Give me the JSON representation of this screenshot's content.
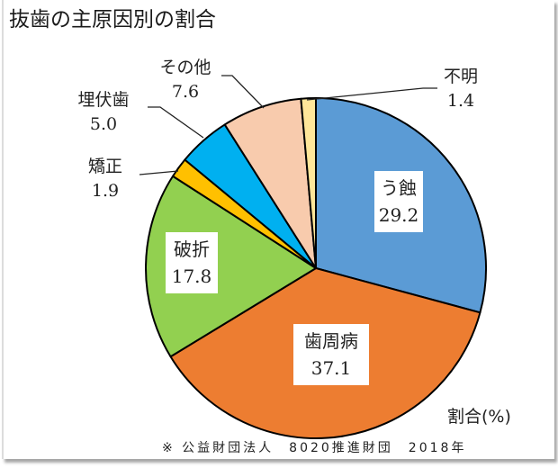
{
  "title": "抜歯の主原因別の割合",
  "unit_label": "割合(%)",
  "source": "※ 公益財団法人　8020推進財団　2018年",
  "slices": [
    {
      "name": "う蝕",
      "value": "29.2",
      "color": "#5B9BD5"
    },
    {
      "name": "歯周病",
      "value": "37.1",
      "color": "#ED7D31"
    },
    {
      "name": "破折",
      "value": "17.8",
      "color": "#92D050"
    },
    {
      "name": "矯正",
      "value": "1.9",
      "color": "#FFC000"
    },
    {
      "name": "埋伏歯",
      "value": "5.0",
      "color": "#00B0F0"
    },
    {
      "name": "その他",
      "value": "7.6",
      "color": "#F8CBAD"
    },
    {
      "name": "不明",
      "value": "1.4",
      "color": "#FFE699"
    }
  ],
  "chart_data": {
    "type": "pie",
    "title": "抜歯の主原因別の割合",
    "categories": [
      "う蝕",
      "歯周病",
      "破折",
      "矯正",
      "埋伏歯",
      "その他",
      "不明"
    ],
    "values": [
      29.2,
      37.1,
      17.8,
      1.9,
      5.0,
      7.6,
      1.4
    ],
    "colors": [
      "#5B9BD5",
      "#ED7D31",
      "#92D050",
      "#FFC000",
      "#00B0F0",
      "#F8CBAD",
      "#FFE699"
    ],
    "unit": "割合(%)",
    "start_angle": "12 o'clock, clockwise",
    "annotations": [
      "※ 公益財団法人　8020推進財団　2018年"
    ]
  }
}
